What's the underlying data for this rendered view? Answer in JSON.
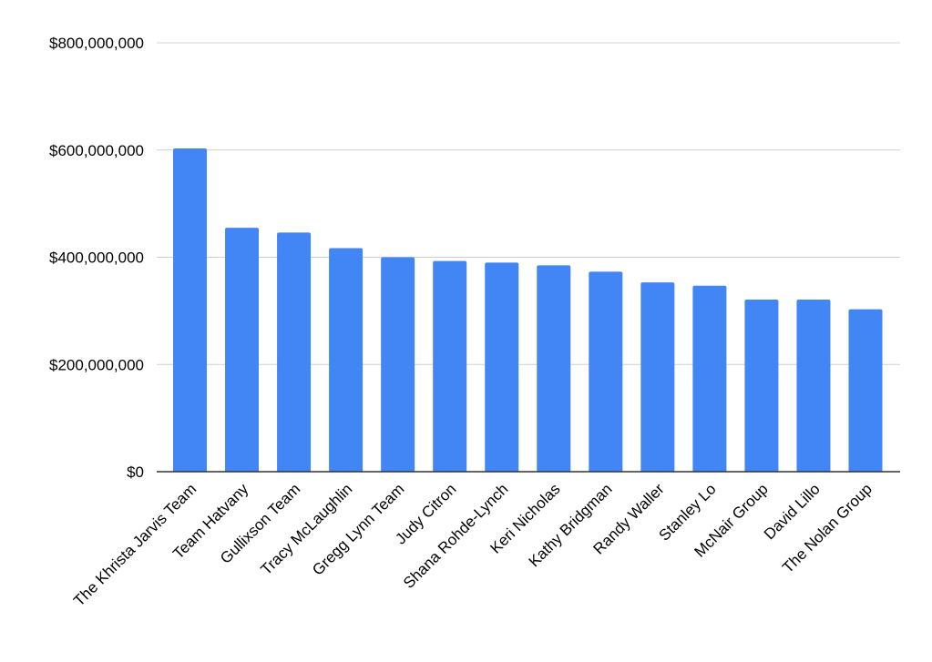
{
  "chart_data": {
    "type": "bar",
    "title": "",
    "xlabel": "",
    "ylabel": "",
    "ylim": [
      0,
      800000000
    ],
    "yticks": [
      0,
      200000000,
      400000000,
      600000000,
      800000000
    ],
    "ytick_labels": [
      "$0",
      "$200,000,000",
      "$400,000,000",
      "$600,000,000",
      "$800,000,000"
    ],
    "grid": true,
    "legend": "none",
    "bar_color": "#4285f4",
    "categories": [
      "The Khrista Jarvis Team",
      "Team Hatvany",
      "Gullixson Team",
      "Tracy McLaughlin",
      "Gregg Lynn Team",
      "Judy Citron",
      "Shana Rohde-Lynch",
      "Keri Nicholas",
      "Kathy Bridgman",
      "Randy Waller",
      "Stanley Lo",
      "McNair Group",
      "David Lillo",
      "The Nolan Group"
    ],
    "values": [
      603000000,
      455000000,
      446000000,
      417000000,
      400000000,
      393000000,
      390000000,
      385000000,
      373000000,
      353000000,
      347000000,
      321000000,
      321000000,
      303000000
    ]
  }
}
